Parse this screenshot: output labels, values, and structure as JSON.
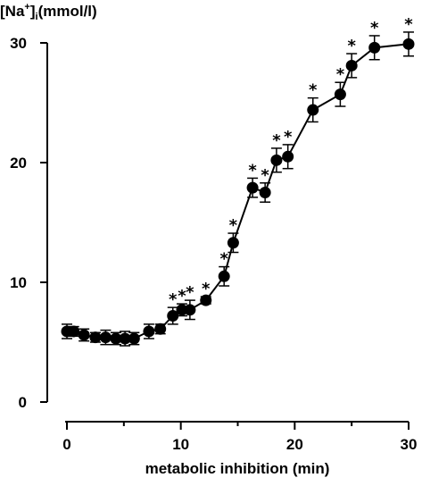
{
  "chart_data": {
    "type": "line",
    "title": "",
    "ylabel": {
      "main": "[Na",
      "sup": "+",
      "close": "]",
      "sub": "i",
      "unit": "(mmol/l)"
    },
    "xlabel": "metabolic inhibition (min)",
    "xlim": [
      0,
      30
    ],
    "ylim": [
      0,
      30
    ],
    "x_ticks": [
      0,
      10,
      20,
      30
    ],
    "y_ticks": [
      0,
      10,
      20,
      30
    ],
    "grid": false,
    "marker_color": "#000000",
    "significance_marker": "*",
    "series": [
      {
        "x": [
          0,
          0.6,
          1.5,
          2.5,
          3.4,
          4.3,
          5.1,
          5.9,
          7.2,
          8.2,
          9.3,
          10.1,
          10.8,
          12.2,
          13.8,
          14.6,
          16.3,
          17.4,
          18.4,
          19.4,
          21.6,
          24.0,
          25.0,
          27.0,
          30.0
        ],
        "y": [
          5.9,
          5.9,
          5.6,
          5.4,
          5.4,
          5.3,
          5.3,
          5.3,
          5.9,
          6.1,
          7.2,
          7.7,
          7.7,
          8.5,
          10.5,
          13.3,
          17.9,
          17.5,
          20.2,
          20.5,
          24.4,
          25.7,
          28.1,
          29.6,
          29.9
        ],
        "err": [
          0.6,
          0.4,
          0.5,
          0.4,
          0.6,
          0.5,
          0.6,
          0.5,
          0.6,
          0.4,
          0.7,
          0.5,
          0.8,
          0.3,
          0.8,
          0.8,
          0.8,
          0.8,
          1.0,
          1.0,
          1.0,
          1.0,
          1.0,
          1.0,
          1.0
        ],
        "significant": [
          false,
          false,
          false,
          false,
          false,
          false,
          false,
          false,
          false,
          false,
          true,
          true,
          true,
          true,
          true,
          true,
          true,
          true,
          true,
          true,
          true,
          true,
          true,
          true,
          true
        ]
      }
    ]
  }
}
